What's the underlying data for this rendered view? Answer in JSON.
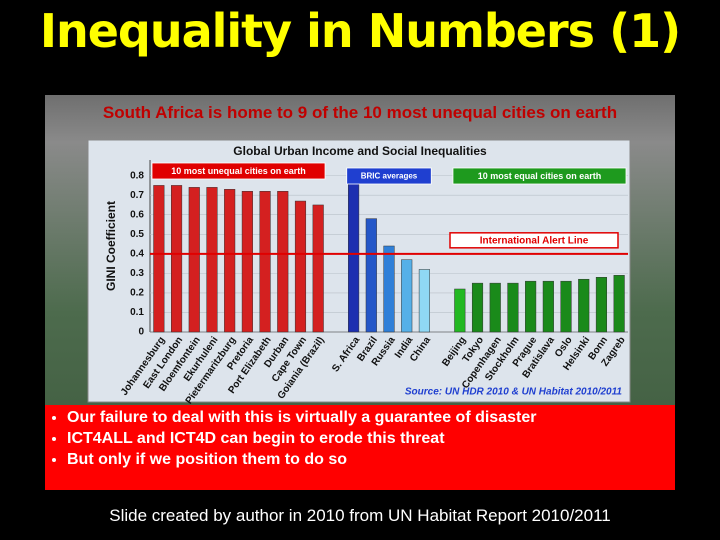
{
  "slide_title": "Inequality in Numbers (1)",
  "headline": "South Africa is home to 9 of the 10 most unequal cities on earth",
  "bullets": [
    "Our failure to deal with this is virtually a guarantee of disaster",
    "ICT4ALL and ICT4D can begin to erode this threat",
    "But only if we position them to do so"
  ],
  "caption": "Slide created by author in 2010 from UN Habitat Report 2010/2011",
  "chart_data": {
    "type": "bar",
    "title": "Global Urban Income and Social Inequalities",
    "y_label": "GINI Coefficient",
    "source": "Source: UN HDR 2010 & UN Habitat 2010/2011",
    "ylim": [
      0,
      0.88
    ],
    "yticks": [
      0,
      0.1,
      0.2,
      0.3,
      0.4,
      0.5,
      0.6,
      0.7,
      0.8
    ],
    "alert_line": {
      "label": "International Alert Line",
      "value": 0.4,
      "color": "#e00000"
    },
    "groups": [
      {
        "label": "10 most unequal cities on earth",
        "label_color": "#e00000",
        "categories": [
          "Johannesburg",
          "East London",
          "Bloemfontein",
          "Ekurhuleni",
          "Pietermaritzburg",
          "Pretoria",
          "Port Elizabeth",
          "Durban",
          "Cape Town",
          "Goiania (Brazil)"
        ],
        "values": [
          0.75,
          0.75,
          0.74,
          0.74,
          0.73,
          0.72,
          0.72,
          0.72,
          0.67,
          0.65
        ],
        "colors": [
          "#d42020",
          "#d42020",
          "#d42020",
          "#d42020",
          "#d42020",
          "#d42020",
          "#d42020",
          "#d42020",
          "#d42020",
          "#d42020"
        ]
      },
      {
        "label": "BRIC averages",
        "label_color": "#1f3fd0",
        "categories": [
          "S. Africa",
          "Brazil",
          "Russia",
          "India",
          "China"
        ],
        "values": [
          0.77,
          0.58,
          0.44,
          0.37,
          0.32
        ],
        "colors": [
          "#1d2fb0",
          "#2457c8",
          "#2f7fd8",
          "#55b0e8",
          "#8fd8f4"
        ]
      },
      {
        "label": "10 most equal cities on earth",
        "label_color": "#1e9a1e",
        "categories": [
          "Beijing",
          "Tokyo",
          "Copenhagen",
          "Stockholm",
          "Prague",
          "Bratislava",
          "Oslo",
          "Helsinki",
          "Bonn",
          "Zagreb"
        ],
        "values": [
          0.22,
          0.25,
          0.25,
          0.25,
          0.26,
          0.26,
          0.26,
          0.27,
          0.28,
          0.29
        ],
        "colors": [
          "#22b822",
          "#1a8a1a",
          "#1a8a1a",
          "#1a8a1a",
          "#1a8a1a",
          "#1a8a1a",
          "#1a8a1a",
          "#1a8a1a",
          "#1a8a1a",
          "#1a8a1a"
        ]
      }
    ]
  }
}
